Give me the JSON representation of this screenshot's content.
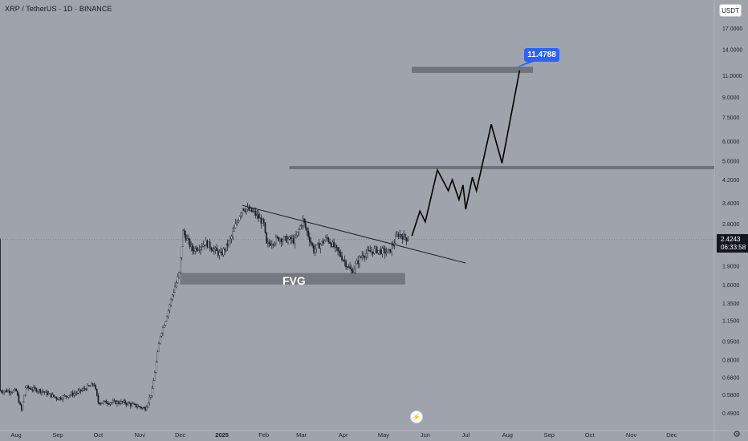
{
  "header": {
    "title": "XRP / TetherUS · 1D · BINANCE",
    "currency": "USDT"
  },
  "price_badge": {
    "price": "2.4243",
    "countdown": "06:33:58"
  },
  "target_badge": {
    "text": "11.4788"
  },
  "fvg_label": "FVG",
  "icons": {
    "logo": "tradingview-logo-icon",
    "settings": "gear-icon"
  },
  "colors": {
    "background": "#9fa3ab",
    "candle": "#131722",
    "zone": "#6f737b",
    "target": "#2962ff",
    "price_line": "#5b7be8",
    "axis_text": "#1f222a"
  },
  "chart_data": {
    "type": "candlestick",
    "title": "XRP / TetherUS · 1D · BINANCE",
    "scale": "log",
    "ylim": [
      0.45,
      19
    ],
    "y_ticks": [
      "17.0000",
      "14.0000",
      "11.0000",
      "9.0000",
      "7.5000",
      "6.0000",
      "5.0000",
      "4.2000",
      "3.4000",
      "2.8000",
      "2.4243",
      "1.9000",
      "1.6000",
      "1.3500",
      "1.1500",
      "0.9500",
      "0.8000",
      "0.6800",
      "0.5800",
      "0.4900"
    ],
    "x_ticks": [
      "Aug",
      "Sep",
      "Oct",
      "Nov",
      "Dec",
      "2025",
      "Feb",
      "Mar",
      "Apr",
      "May",
      "Jun",
      "Jul",
      "Aug",
      "Sep",
      "Oct",
      "Nov",
      "Dec"
    ],
    "current_price": 2.4243,
    "price_series": [
      {
        "date": "2024-08-01",
        "value": 0.6
      },
      {
        "date": "2024-08-05",
        "value": 0.5
      },
      {
        "date": "2024-08-08",
        "value": 0.62
      },
      {
        "date": "2024-08-20",
        "value": 0.6
      },
      {
        "date": "2024-09-01",
        "value": 0.56
      },
      {
        "date": "2024-09-15",
        "value": 0.59
      },
      {
        "date": "2024-09-28",
        "value": 0.64
      },
      {
        "date": "2024-10-01",
        "value": 0.54
      },
      {
        "date": "2024-10-20",
        "value": 0.54
      },
      {
        "date": "2024-11-05",
        "value": 0.51
      },
      {
        "date": "2024-11-10",
        "value": 0.6
      },
      {
        "date": "2024-11-16",
        "value": 1.0
      },
      {
        "date": "2024-11-20",
        "value": 1.15
      },
      {
        "date": "2024-11-25",
        "value": 1.45
      },
      {
        "date": "2024-11-30",
        "value": 1.75
      },
      {
        "date": "2024-12-03",
        "value": 2.6
      },
      {
        "date": "2024-12-10",
        "value": 2.2
      },
      {
        "date": "2024-12-20",
        "value": 2.35
      },
      {
        "date": "2024-12-31",
        "value": 2.1
      },
      {
        "date": "2025-01-07",
        "value": 2.4
      },
      {
        "date": "2025-01-16",
        "value": 3.25
      },
      {
        "date": "2025-01-25",
        "value": 3.1
      },
      {
        "date": "2025-02-01",
        "value": 2.8
      },
      {
        "date": "2025-02-03",
        "value": 2.3
      },
      {
        "date": "2025-02-12",
        "value": 2.45
      },
      {
        "date": "2025-02-24",
        "value": 2.4
      },
      {
        "date": "2025-03-02",
        "value": 2.9
      },
      {
        "date": "2025-03-10",
        "value": 2.2
      },
      {
        "date": "2025-03-20",
        "value": 2.45
      },
      {
        "date": "2025-03-30",
        "value": 2.1
      },
      {
        "date": "2025-04-07",
        "value": 1.8
      },
      {
        "date": "2025-04-15",
        "value": 2.1
      },
      {
        "date": "2025-04-25",
        "value": 2.2
      },
      {
        "date": "2025-05-05",
        "value": 2.15
      },
      {
        "date": "2025-05-12",
        "value": 2.55
      },
      {
        "date": "2025-05-20",
        "value": 2.42
      }
    ],
    "annotations": {
      "trendline": [
        {
          "date": "2025-01-16",
          "value": 3.32
        },
        {
          "date": "2025-07-01",
          "value": 1.95
        }
      ],
      "fvg_zone": {
        "label": "FVG",
        "from": "2024-12-01",
        "to": "2025-05-17",
        "low": 1.6,
        "high": 1.78
      },
      "resistance_line": {
        "from": "2025-02-20",
        "value": 4.7
      },
      "target_zone": {
        "from": "2025-05-22",
        "to": "2025-08-20",
        "low": 11.25,
        "high": 11.9
      },
      "target_label": "11.4788",
      "projection": [
        {
          "date": "2025-05-22",
          "value": 2.5
        },
        {
          "date": "2025-05-28",
          "value": 3.15
        },
        {
          "date": "2025-06-01",
          "value": 2.85
        },
        {
          "date": "2025-06-10",
          "value": 4.6
        },
        {
          "date": "2025-06-18",
          "value": 3.8
        },
        {
          "date": "2025-06-21",
          "value": 4.2
        },
        {
          "date": "2025-06-26",
          "value": 3.5
        },
        {
          "date": "2025-06-29",
          "value": 4.0
        },
        {
          "date": "2025-07-01",
          "value": 3.2
        },
        {
          "date": "2025-07-06",
          "value": 4.3
        },
        {
          "date": "2025-07-09",
          "value": 3.8
        },
        {
          "date": "2025-07-20",
          "value": 7.0
        },
        {
          "date": "2025-07-28",
          "value": 4.9
        },
        {
          "date": "2025-08-10",
          "value": 11.5
        }
      ]
    }
  }
}
